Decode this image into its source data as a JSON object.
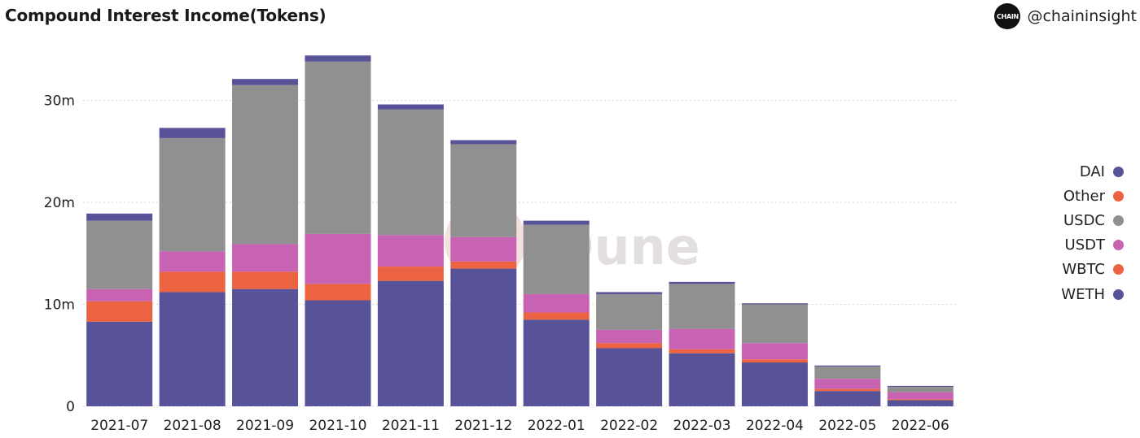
{
  "header": {
    "title": "Compound Interest Income(Tokens)",
    "brand_logo_text": "CHAIN",
    "brand_handle": "@chaininsight"
  },
  "watermark": "Dune",
  "chart_data": {
    "type": "bar",
    "stacked": true,
    "title": "Compound Interest Income(Tokens)",
    "xlabel": "",
    "ylabel": "",
    "categories": [
      "2021-07",
      "2021-08",
      "2021-09",
      "2021-10",
      "2021-11",
      "2021-12",
      "2022-01",
      "2022-02",
      "2022-03",
      "2022-04",
      "2022-05",
      "2022-06"
    ],
    "yticks": [
      0,
      10000000,
      20000000,
      30000000
    ],
    "ytick_labels": [
      "0",
      "10m",
      "20m",
      "30m"
    ],
    "ylim": [
      0,
      36000000
    ],
    "grid": true,
    "legend_position": "right",
    "series": [
      {
        "name": "WETH",
        "color": "#585399",
        "values": [
          8300000,
          11200000,
          11500000,
          10400000,
          12300000,
          13500000,
          8500000,
          5700000,
          5200000,
          4300000,
          1500000,
          600000
        ]
      },
      {
        "name": "WBTC",
        "color": "#ec6341",
        "values": [
          2000000,
          2000000,
          1700000,
          1600000,
          1400000,
          700000,
          700000,
          500000,
          400000,
          300000,
          200000,
          100000
        ]
      },
      {
        "name": "USDT",
        "color": "#c763b2",
        "values": [
          1200000,
          2000000,
          2700000,
          4900000,
          3100000,
          2400000,
          1800000,
          1300000,
          2000000,
          1600000,
          1000000,
          700000
        ]
      },
      {
        "name": "USDC",
        "color": "#909090",
        "values": [
          6700000,
          11100000,
          15600000,
          16900000,
          12300000,
          9100000,
          6800000,
          3500000,
          4400000,
          3800000,
          1200000,
          500000
        ]
      },
      {
        "name": "Other",
        "color": "#ec6341",
        "values": [
          0,
          0,
          0,
          0,
          0,
          0,
          0,
          0,
          0,
          0,
          0,
          0
        ]
      },
      {
        "name": "DAI",
        "color": "#585399",
        "values": [
          700000,
          1000000,
          600000,
          600000,
          500000,
          400000,
          400000,
          200000,
          200000,
          100000,
          100000,
          100000
        ]
      }
    ]
  },
  "legend": {
    "items": [
      {
        "label": "DAI",
        "color": "#585399"
      },
      {
        "label": "Other",
        "color": "#ec6341"
      },
      {
        "label": "USDC",
        "color": "#909090"
      },
      {
        "label": "USDT",
        "color": "#c763b2"
      },
      {
        "label": "WBTC",
        "color": "#ec6341"
      },
      {
        "label": "WETH",
        "color": "#585399"
      }
    ]
  }
}
